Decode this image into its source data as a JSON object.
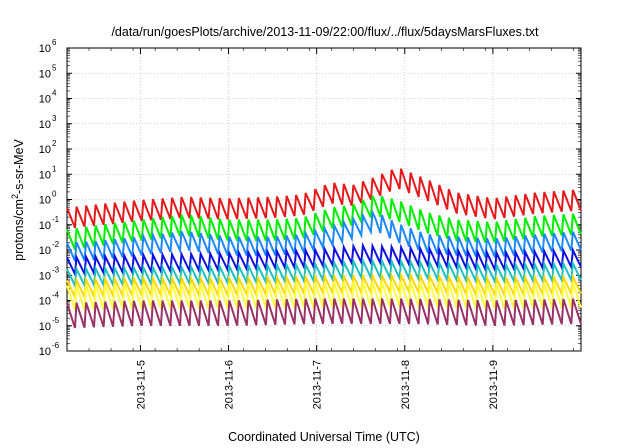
{
  "chart_data": {
    "type": "line",
    "title": "/data/run/goesPlots/archive/2013-11-09/22:00/flux/../flux/5daysMarsFluxes.txt",
    "xlabel": "Coordinated Universal Time (UTC)",
    "ylabel": {
      "prefix": "protons/cm",
      "superscript": "2",
      "suffix": "-s-sr-MeV"
    },
    "yscale": "log",
    "ylim": [
      1e-06,
      1000000.0
    ],
    "yticks": [
      {
        "base": "10",
        "exp": "-6",
        "value": 1e-06
      },
      {
        "base": "10",
        "exp": "-5",
        "value": 1e-05
      },
      {
        "base": "10",
        "exp": "-4",
        "value": 0.0001
      },
      {
        "base": "10",
        "exp": "-3",
        "value": 0.001
      },
      {
        "base": "10",
        "exp": "-2",
        "value": 0.01
      },
      {
        "base": "10",
        "exp": "-1",
        "value": 0.1
      },
      {
        "base": "10",
        "exp": "0",
        "value": 1
      },
      {
        "base": "10",
        "exp": "1",
        "value": 10.0
      },
      {
        "base": "10",
        "exp": "2",
        "value": 100.0
      },
      {
        "base": "10",
        "exp": "3",
        "value": 1000.0
      },
      {
        "base": "10",
        "exp": "4",
        "value": 10000.0
      },
      {
        "base": "10",
        "exp": "5",
        "value": 100000.0
      },
      {
        "base": "10",
        "exp": "6",
        "value": 1000000.0
      }
    ],
    "xlim": [
      "2013-11-04 04:00",
      "2013-11-10 00:00"
    ],
    "xticks": [
      "2013-11-5",
      "2013-11-6",
      "2013-11-7",
      "2013-11-8",
      "2013-11-9"
    ],
    "grid": true,
    "legend": "none",
    "series": [
      {
        "color": "#e41a1c",
        "x": [
          "2013-11-04 04:00",
          "2013-11-04 12:00",
          "2013-11-05 00:00",
          "2013-11-05 12:00",
          "2013-11-06 00:00",
          "2013-11-06 12:00",
          "2013-11-06 20:00",
          "2013-11-07 04:00",
          "2013-11-07 10:00",
          "2013-11-07 16:00",
          "2013-11-07 22:00",
          "2013-11-08 06:00",
          "2013-11-08 14:00",
          "2013-11-09 00:00",
          "2013-11-09 12:00",
          "2013-11-10 00:00"
        ],
        "values": [
          0.15,
          0.2,
          0.3,
          0.4,
          0.35,
          0.4,
          0.5,
          1.5,
          1.2,
          2.5,
          6.0,
          2.0,
          0.6,
          0.35,
          0.6,
          0.8
        ]
      },
      {
        "color": "#00ee00",
        "x": [
          "2013-11-04 04:00",
          "2013-11-04 12:00",
          "2013-11-05 00:00",
          "2013-11-05 12:00",
          "2013-11-06 00:00",
          "2013-11-06 12:00",
          "2013-11-06 20:00",
          "2013-11-07 04:00",
          "2013-11-07 10:00",
          "2013-11-07 16:00",
          "2013-11-07 22:00",
          "2013-11-08 06:00",
          "2013-11-08 14:00",
          "2013-11-09 00:00",
          "2013-11-09 12:00",
          "2013-11-10 00:00"
        ],
        "values": [
          0.02,
          0.03,
          0.05,
          0.08,
          0.05,
          0.05,
          0.06,
          0.15,
          0.2,
          0.5,
          0.3,
          0.1,
          0.05,
          0.04,
          0.07,
          0.09
        ]
      },
      {
        "color": "#1e88ff",
        "x": [
          "2013-11-04 04:00",
          "2013-11-04 12:00",
          "2013-11-05 00:00",
          "2013-11-05 12:00",
          "2013-11-06 00:00",
          "2013-11-06 12:00",
          "2013-11-06 20:00",
          "2013-11-07 04:00",
          "2013-11-07 10:00",
          "2013-11-07 16:00",
          "2013-11-07 22:00",
          "2013-11-08 06:00",
          "2013-11-08 14:00",
          "2013-11-09 00:00",
          "2013-11-09 12:00",
          "2013-11-10 00:00"
        ],
        "values": [
          0.007,
          0.008,
          0.012,
          0.02,
          0.012,
          0.012,
          0.015,
          0.03,
          0.06,
          0.12,
          0.04,
          0.015,
          0.012,
          0.01,
          0.015,
          0.02
        ]
      },
      {
        "color": "#1010e0",
        "x": [
          "2013-11-04 04:00",
          "2013-11-05 00:00",
          "2013-11-06 00:00",
          "2013-11-07 00:00",
          "2013-11-07 12:00",
          "2013-11-08 00:00",
          "2013-11-09 00:00",
          "2013-11-10 00:00"
        ],
        "values": [
          0.002,
          0.0025,
          0.003,
          0.004,
          0.006,
          0.005,
          0.003,
          0.004
        ]
      },
      {
        "color": "#20c0c0",
        "x": [
          "2013-11-04 04:00",
          "2013-11-05 00:00",
          "2013-11-06 00:00",
          "2013-11-07 00:00",
          "2013-11-07 12:00",
          "2013-11-08 00:00",
          "2013-11-09 00:00",
          "2013-11-10 00:00"
        ],
        "values": [
          0.0007,
          0.0008,
          0.0009,
          0.0011,
          0.0015,
          0.0014,
          0.001,
          0.0012
        ]
      },
      {
        "color": "#ffd700",
        "x": [
          "2013-11-04 04:00",
          "2013-11-05 00:00",
          "2013-11-06 00:00",
          "2013-11-07 00:00",
          "2013-11-08 00:00",
          "2013-11-09 00:00",
          "2013-11-10 00:00"
        ],
        "values": [
          0.00025,
          0.0003,
          0.0003,
          0.00035,
          0.0004,
          0.0003,
          0.00035
        ]
      },
      {
        "color": "#ffff40",
        "x": [
          "2013-11-04 04:00",
          "2013-11-05 00:00",
          "2013-11-06 00:00",
          "2013-11-07 00:00",
          "2013-11-08 00:00",
          "2013-11-09 00:00",
          "2013-11-10 00:00"
        ],
        "values": [
          0.0001,
          0.00012,
          0.00012,
          0.00013,
          0.00014,
          0.00012,
          0.00013
        ]
      },
      {
        "color": "#993366",
        "x": [
          "2013-11-04 04:00",
          "2013-11-05 00:00",
          "2013-11-06 00:00",
          "2013-11-07 00:00",
          "2013-11-08 00:00",
          "2013-11-09 00:00",
          "2013-11-10 00:00"
        ],
        "values": [
          2e-05,
          2.5e-05,
          2.5e-05,
          3e-05,
          3e-05,
          2.5e-05,
          3e-05
        ]
      }
    ]
  }
}
